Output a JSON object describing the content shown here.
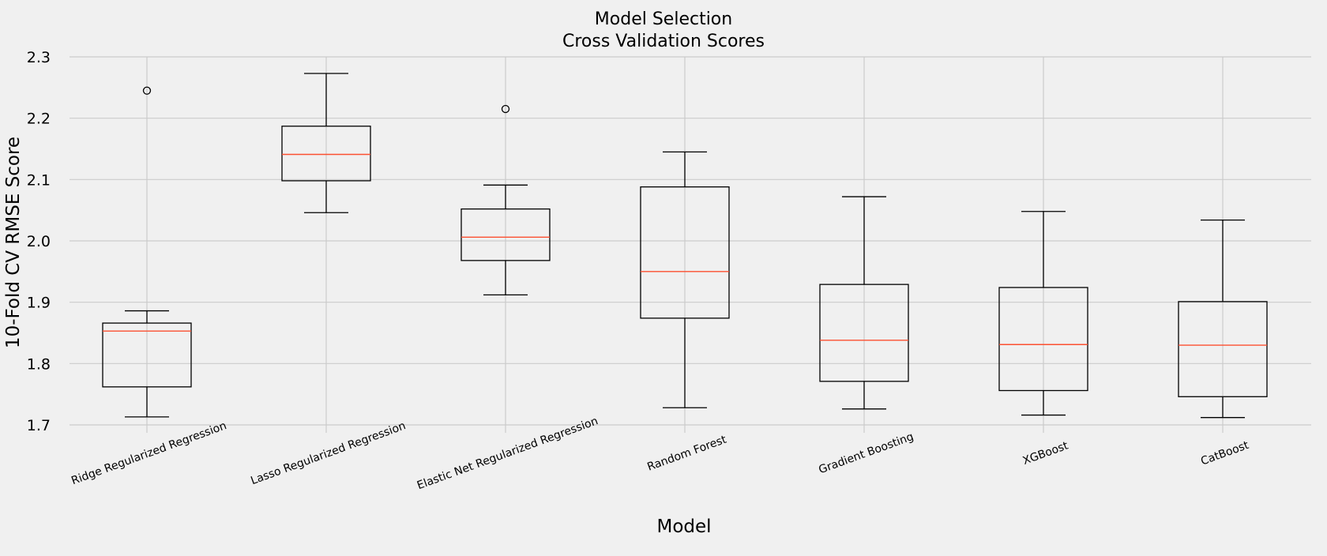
{
  "chart_data": {
    "type": "box",
    "title": "Model Selection",
    "subtitle": "Cross Validation Scores",
    "xlabel": "Model",
    "ylabel": "10-Fold CV RMSE Score",
    "ylim": [
      1.7,
      2.3
    ],
    "yticks": [
      1.7,
      1.8,
      1.9,
      2.0,
      2.1,
      2.2,
      2.3
    ],
    "ytick_labels": [
      "1.7",
      "1.8",
      "1.9",
      "2.0",
      "2.1",
      "2.2",
      "2.3"
    ],
    "grid": true,
    "categories": [
      "Ridge Regularized Regression",
      "Lasso Regularized Regression",
      "Elastic Net Regularized Regression",
      "Random Forest",
      "Gradient Boosting",
      "XGBoost",
      "CatBoost"
    ],
    "boxes": [
      {
        "whisker_low": 1.713,
        "q1": 1.762,
        "median": 1.853,
        "q3": 1.866,
        "whisker_high": 1.886,
        "fliers": [
          2.245
        ]
      },
      {
        "whisker_low": 2.046,
        "q1": 2.098,
        "median": 2.141,
        "q3": 2.187,
        "whisker_high": 2.273,
        "fliers": []
      },
      {
        "whisker_low": 1.912,
        "q1": 1.968,
        "median": 2.006,
        "q3": 2.052,
        "whisker_high": 2.091,
        "fliers": [
          2.215
        ]
      },
      {
        "whisker_low": 1.728,
        "q1": 1.874,
        "median": 1.95,
        "q3": 2.088,
        "whisker_high": 2.145,
        "fliers": []
      },
      {
        "whisker_low": 1.726,
        "q1": 1.771,
        "median": 1.838,
        "q3": 1.929,
        "whisker_high": 2.072,
        "fliers": []
      },
      {
        "whisker_low": 1.716,
        "q1": 1.756,
        "median": 1.831,
        "q3": 1.924,
        "whisker_high": 2.048,
        "fliers": []
      },
      {
        "whisker_low": 1.712,
        "q1": 1.746,
        "median": 1.83,
        "q3": 1.901,
        "whisker_high": 2.034,
        "fliers": []
      }
    ],
    "colors": {
      "background": "#f0f0f0",
      "grid": "#cbcbcb",
      "box": "#000000",
      "median": "#fc4f30"
    }
  }
}
